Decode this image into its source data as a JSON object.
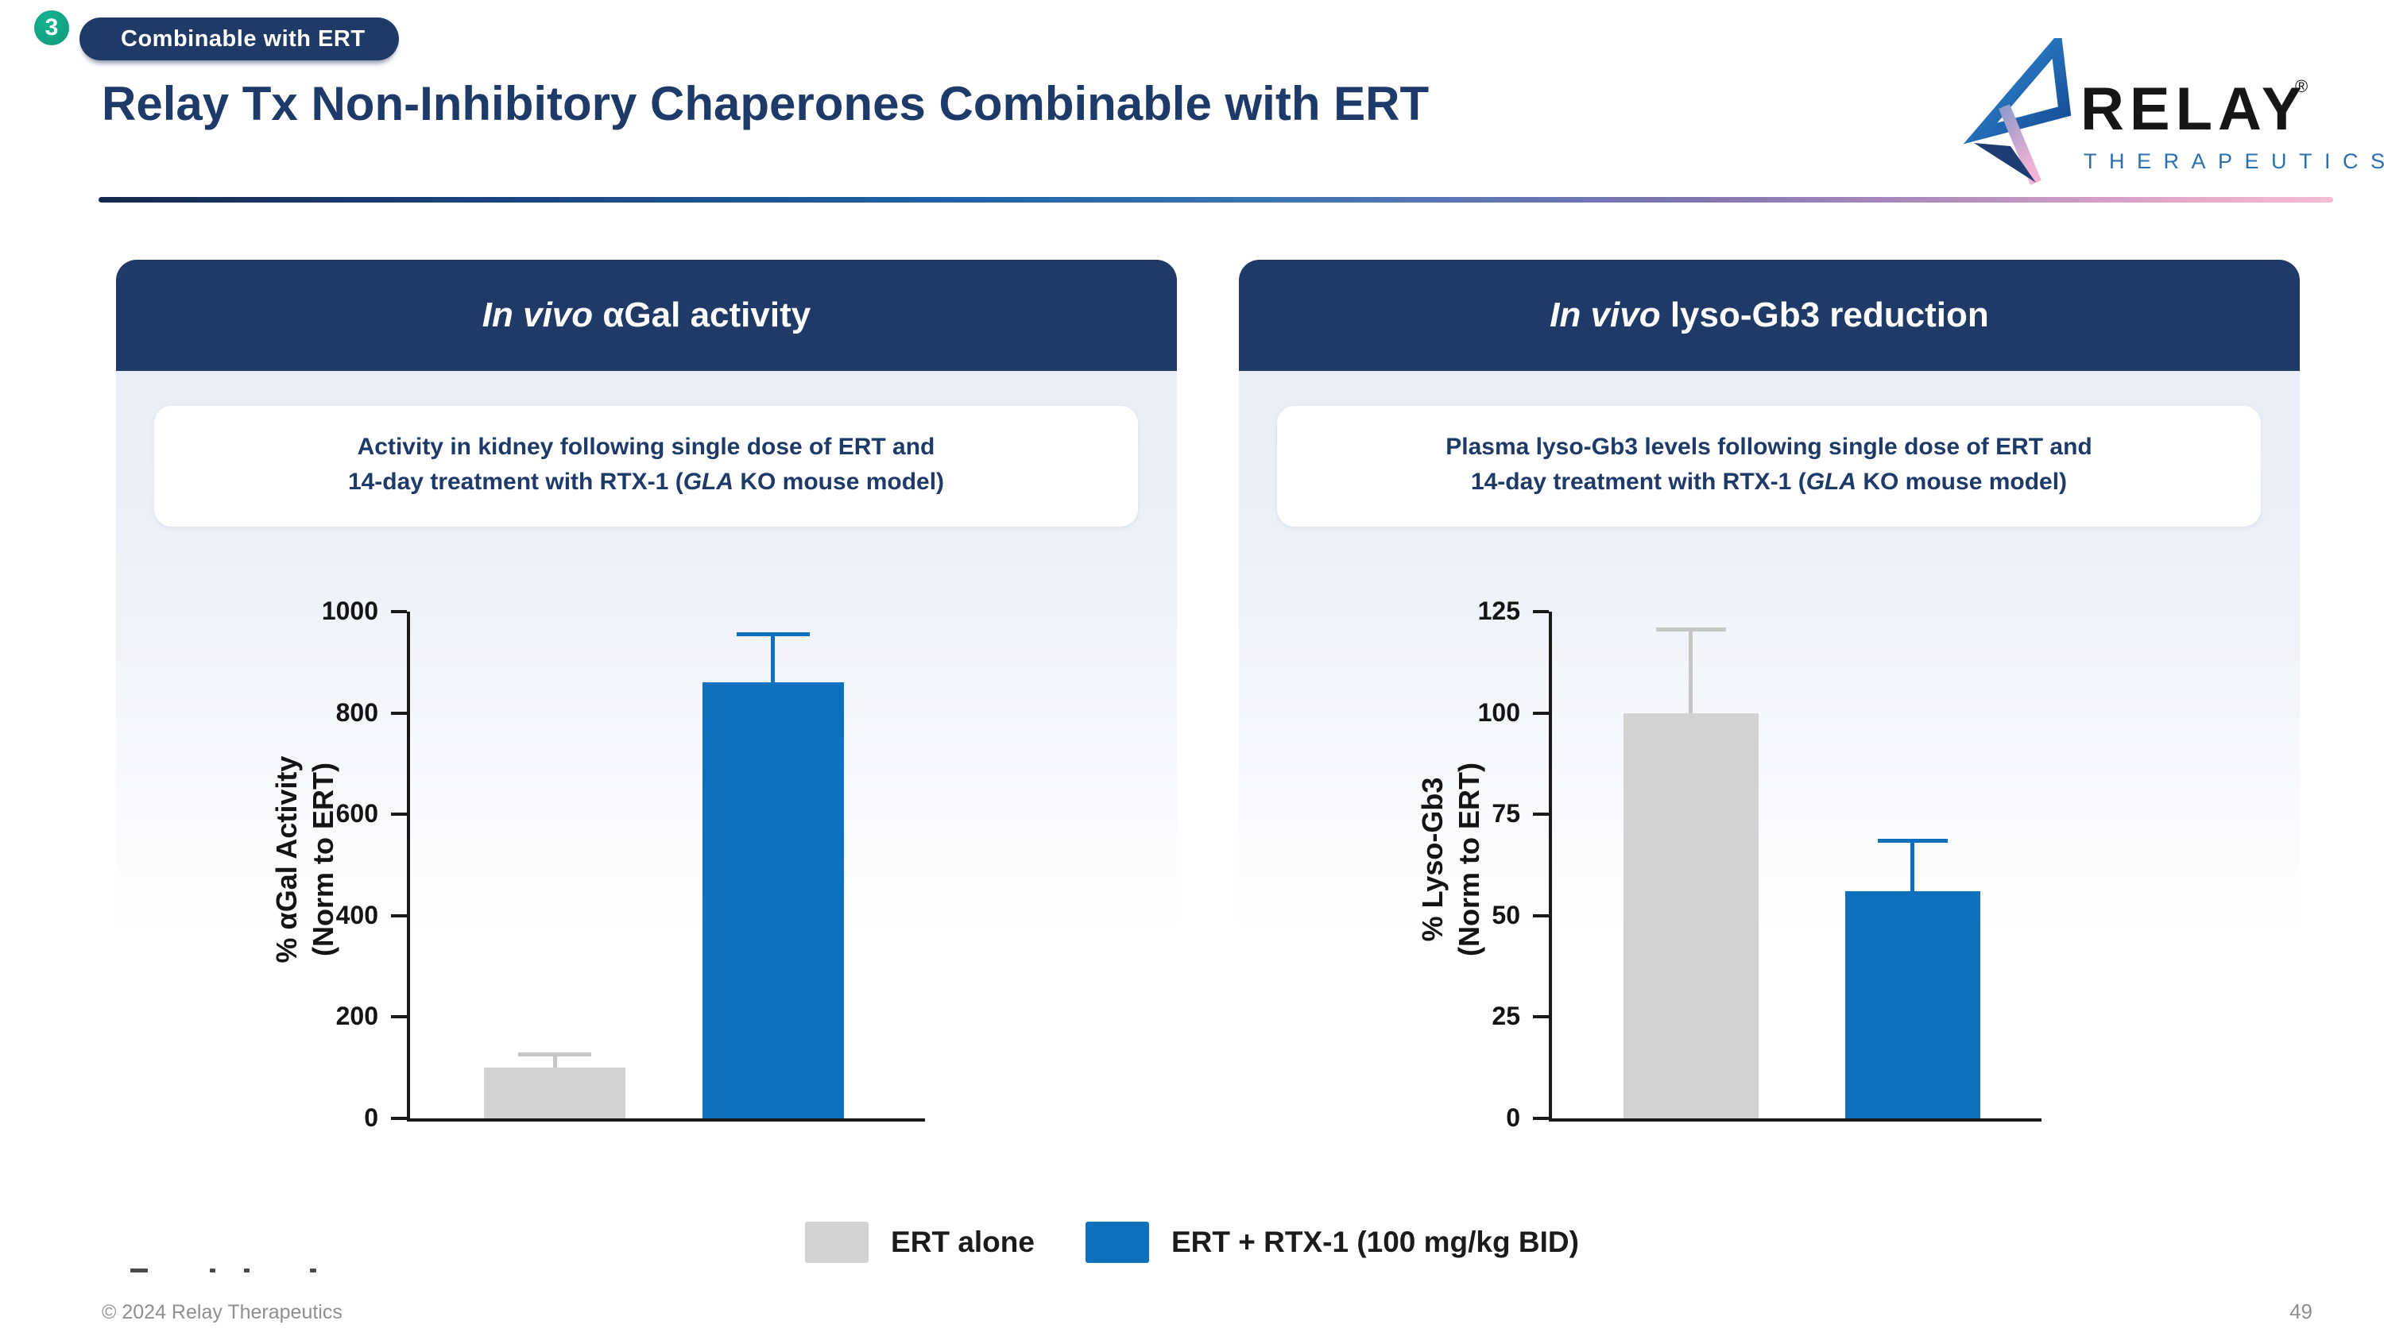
{
  "slide": {
    "step_badge": "3",
    "section_badge": "Combinable with ERT",
    "title": "Relay Tx Non-Inhibitory Chaperones Combinable with ERT",
    "footer_copyright": "© 2024 Relay Therapeutics",
    "page_number": "49"
  },
  "logo": {
    "wordmark": "RELAY",
    "registered": "®",
    "subtext": "THERAPEUTICS"
  },
  "colors": {
    "navy": "#1f3a66",
    "title_text": "#1e3a68",
    "bar_gray": "#d2d2d2",
    "bar_gray_error": "#c6c6c6",
    "bar_blue": "#0f70bd",
    "badge_teal": "#10a07e",
    "divider_pink": "#f6bcd6",
    "axis_black": "#1a1a1a"
  },
  "panels": [
    {
      "header_italic": "In vivo",
      "header_rest": " αGal activity",
      "subtitle_line1": "Activity in kidney following single dose of ERT and",
      "subtitle_line2_pre": "14-day treatment with RTX-1 (",
      "subtitle_line2_italic": "GLA",
      "subtitle_line2_post": " KO mouse model)"
    },
    {
      "header_italic": "In vivo",
      "header_rest": " lyso-Gb3 reduction",
      "subtitle_line1": "Plasma lyso-Gb3 levels following single dose of ERT and",
      "subtitle_line2_pre": "14-day treatment with RTX-1 (",
      "subtitle_line2_italic": "GLA",
      "subtitle_line2_post": " KO mouse model)"
    }
  ],
  "legend": [
    {
      "label": "ERT alone",
      "color": "#d2d2d2"
    },
    {
      "label": "ERT + RTX-1 (100 mg/kg BID)",
      "color": "#0f70bd"
    }
  ],
  "chart_data": [
    {
      "type": "bar",
      "title": "In vivo αGal activity",
      "categories": [
        "ERT alone",
        "ERT + RTX-1 (100 mg/kg BID)"
      ],
      "values": [
        100,
        860
      ],
      "upper_errors": [
        30,
        100
      ],
      "ylabel": "% αGal Activity (Norm to ERT)",
      "ylabel_lines": [
        "% αGal Activity",
        "(Norm to ERT)"
      ],
      "ylim": [
        0,
        1000
      ],
      "yticks": [
        0,
        200,
        400,
        600,
        800,
        1000
      ],
      "bar_colors": [
        "#d2d2d2",
        "#0f70bd"
      ],
      "error_colors": [
        "#c6c6c6",
        "#0f70bd"
      ],
      "bar_centers": [
        0.281,
        0.705
      ],
      "grid": false,
      "legend_position": "bottom"
    },
    {
      "type": "bar",
      "title": "In vivo lyso-Gb3 reduction",
      "categories": [
        "ERT alone",
        "ERT + RTX-1 (100 mg/kg BID)"
      ],
      "values": [
        100,
        56
      ],
      "upper_errors": [
        21,
        13
      ],
      "ylabel": "% Lyso-Gb3 (Norm to ERT)",
      "ylabel_lines": [
        "% Lyso-Gb3",
        "(Norm to ERT)"
      ],
      "ylim": [
        0,
        125
      ],
      "yticks": [
        0,
        25,
        50,
        75,
        100,
        125
      ],
      "bar_colors": [
        "#d2d2d2",
        "#0f70bd"
      ],
      "error_colors": [
        "#c6c6c6",
        "#0f70bd"
      ],
      "bar_centers": [
        0.284,
        0.737
      ],
      "grid": false,
      "legend_position": "bottom"
    }
  ]
}
